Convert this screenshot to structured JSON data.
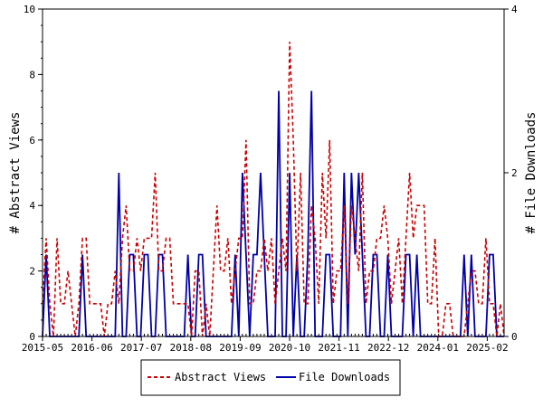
{
  "chart_data": {
    "type": "line",
    "x_tick_labels": [
      "2015-05",
      "2016-06",
      "2017-07",
      "2018-08",
      "2019-09",
      "2020-10",
      "2021-11",
      "2022-12",
      "2024-01",
      "2025-02"
    ],
    "y_left": {
      "label": "# Abstract Views",
      "ylim": [
        0,
        10
      ],
      "ticks": [
        0,
        2,
        4,
        6,
        8,
        10
      ]
    },
    "y_right": {
      "label": "# File Downloads",
      "ylim": [
        0,
        4
      ],
      "ticks": [
        0,
        2,
        4
      ]
    },
    "grid": false,
    "legend_position": "bottom",
    "series": [
      {
        "name": "Abstract Views",
        "axis": "left",
        "color": "#cc0000",
        "dash": "dashed",
        "values": [
          1,
          3,
          1,
          0,
          3,
          1,
          1,
          2,
          1,
          0,
          1,
          3,
          3,
          1,
          1,
          1,
          1,
          0,
          1,
          1,
          2,
          1,
          3,
          4,
          2,
          2,
          3,
          2,
          3,
          3,
          3,
          5,
          2,
          2,
          3,
          3,
          1,
          1,
          1,
          1,
          1,
          0,
          2,
          2,
          0,
          1,
          0,
          2,
          4,
          2,
          2,
          3,
          1,
          2,
          3,
          3,
          6,
          1,
          1,
          2,
          2,
          3,
          2,
          3,
          1,
          2,
          3,
          2,
          9,
          6,
          2,
          5,
          1,
          1,
          4,
          3,
          1,
          5,
          3,
          6,
          1,
          2,
          2,
          4,
          1,
          4,
          3,
          2,
          5,
          1,
          2,
          2,
          3,
          3,
          4,
          3,
          1,
          2,
          3,
          1,
          3,
          5,
          3,
          4,
          4,
          4,
          1,
          1,
          3,
          0,
          0,
          1,
          1,
          0,
          0,
          0,
          0,
          1,
          2,
          2,
          1,
          1,
          3,
          1,
          1,
          0,
          1,
          0
        ]
      },
      {
        "name": "File Downloads",
        "axis": "right",
        "color": "#0000aa",
        "dash": "solid",
        "values": [
          0,
          1,
          0,
          0,
          0,
          0,
          0,
          0,
          0,
          0,
          0,
          1,
          0,
          0,
          0,
          0,
          0,
          0,
          0,
          0,
          0,
          2,
          0,
          0,
          1,
          1,
          0,
          0,
          1,
          1,
          0,
          0,
          1,
          1,
          0,
          0,
          0,
          0,
          0,
          0,
          1,
          0,
          0,
          1,
          1,
          0,
          0,
          0,
          0,
          0,
          0,
          0,
          0,
          1,
          0,
          2,
          1,
          0,
          1,
          1,
          2,
          1,
          0,
          0,
          0,
          3,
          0,
          0,
          2,
          0,
          1,
          0,
          0,
          1,
          3,
          0,
          0,
          0,
          1,
          1,
          0,
          0,
          0,
          2,
          0,
          2,
          1,
          2,
          1,
          0,
          0,
          1,
          1,
          0,
          0,
          1,
          0,
          0,
          0,
          0,
          1,
          1,
          0,
          1,
          0,
          0,
          0,
          0,
          0,
          0,
          0,
          0,
          0,
          0,
          0,
          0,
          1,
          0,
          1,
          0,
          0,
          0,
          0,
          1,
          1,
          0,
          0,
          0
        ]
      }
    ]
  }
}
